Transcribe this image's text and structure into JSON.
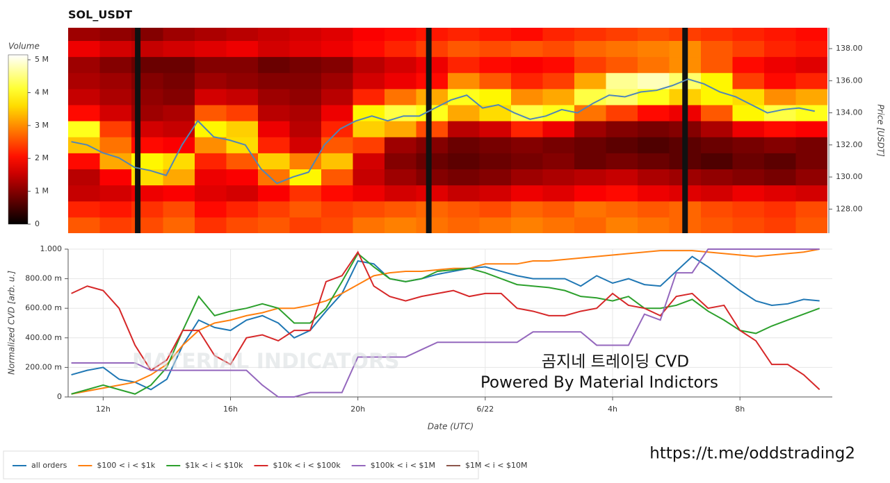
{
  "chart_data": [
    {
      "type": "heatmap",
      "title": "SOL_USDT",
      "colorbar_label": "Volume",
      "clim": [
        0,
        5.15
      ],
      "cticks": [
        0,
        {
          "value": 1,
          "label": "1 M"
        },
        {
          "value": 2,
          "label": "2 M"
        },
        {
          "value": 3,
          "label": "3 M"
        },
        {
          "value": 4,
          "label": "4 M"
        },
        {
          "value": 5,
          "label": "5 M"
        }
      ],
      "xlim": [
        10.9,
        34.9
      ],
      "y2label": "Price [USDT]",
      "y2lim": [
        126.5,
        139.3
      ],
      "y2ticks": [
        {
          "value": 128,
          "label": "128.00"
        },
        {
          "value": 130,
          "label": "130.00"
        },
        {
          "value": 132,
          "label": "132.00"
        },
        {
          "value": 134,
          "label": "134.00"
        },
        {
          "value": 136,
          "label": "136.00"
        },
        {
          "value": 138,
          "label": "138.00"
        }
      ],
      "x_edges": [
        10.9,
        11.9,
        12.9,
        13.9,
        14.9,
        15.9,
        16.9,
        17.9,
        18.9,
        19.9,
        20.9,
        21.9,
        22.9,
        23.9,
        24.9,
        25.9,
        26.9,
        27.9,
        28.9,
        29.9,
        30.9,
        31.9,
        32.9,
        33.9,
        34.9
      ],
      "y_edges": [
        126.5,
        127.5,
        128.5,
        129.5,
        130.5,
        131.5,
        132.5,
        133.5,
        134.5,
        135.5,
        136.5,
        137.5,
        138.5,
        139.5
      ],
      "z": [
        [
          2.6,
          2.4,
          2.5,
          2.7,
          2.3,
          2.5,
          2.6,
          2.4,
          2.5,
          2.8,
          2.9,
          2.8,
          2.7,
          2.8,
          2.9,
          2.8,
          2.7,
          2.9,
          2.8,
          2.7,
          2.6,
          2.5,
          2.4,
          2.6
        ],
        [
          2.2,
          2.1,
          2.3,
          2.5,
          2.0,
          2.2,
          2.4,
          2.6,
          2.4,
          2.5,
          2.6,
          2.7,
          2.6,
          2.5,
          2.7,
          2.6,
          2.8,
          2.7,
          2.6,
          2.7,
          2.5,
          2.4,
          2.3,
          2.5
        ],
        [
          1.5,
          1.6,
          1.8,
          1.9,
          1.7,
          1.6,
          1.9,
          2.3,
          2.0,
          1.8,
          1.6,
          1.7,
          1.5,
          1.6,
          1.8,
          1.7,
          1.9,
          2.0,
          1.8,
          1.7,
          1.6,
          1.8,
          1.7,
          1.6
        ],
        [
          1.4,
          1.9,
          3.6,
          3.2,
          1.8,
          1.9,
          2.8,
          3.8,
          2.6,
          1.5,
          1.2,
          1.0,
          0.9,
          1.0,
          1.2,
          1.3,
          1.4,
          1.5,
          1.3,
          1.2,
          1.1,
          1.0,
          0.9,
          1.1
        ],
        [
          2.0,
          3.2,
          3.8,
          3.6,
          2.2,
          2.6,
          3.5,
          2.9,
          3.4,
          1.6,
          1.0,
          0.8,
          0.7,
          0.8,
          0.9,
          1.0,
          0.8,
          0.9,
          0.8,
          0.7,
          0.6,
          0.8,
          0.7,
          0.9
        ],
        [
          3.4,
          2.8,
          2.0,
          1.9,
          3.0,
          3.6,
          2.2,
          1.6,
          2.6,
          2.4,
          1.2,
          1.0,
          0.8,
          0.9,
          1.0,
          0.9,
          0.8,
          0.7,
          0.6,
          0.7,
          0.8,
          0.9,
          1.0,
          0.9
        ],
        [
          4.0,
          2.4,
          1.6,
          1.5,
          3.8,
          3.5,
          1.8,
          1.4,
          2.2,
          3.5,
          3.2,
          2.5,
          1.4,
          1.6,
          2.2,
          1.8,
          1.2,
          1.0,
          0.9,
          1.0,
          1.3,
          1.8,
          2.0,
          1.9
        ],
        [
          2.0,
          1.6,
          1.2,
          1.3,
          2.6,
          2.4,
          1.4,
          1.3,
          1.8,
          3.8,
          4.2,
          4.0,
          3.2,
          3.6,
          4.2,
          4.0,
          2.8,
          2.4,
          2.0,
          1.8,
          2.6,
          3.8,
          4.2,
          4.0
        ],
        [
          1.5,
          1.3,
          1.1,
          1.0,
          1.6,
          1.5,
          1.2,
          1.1,
          1.4,
          2.2,
          2.8,
          3.2,
          4.0,
          3.8,
          3.0,
          3.2,
          4.2,
          4.4,
          4.0,
          3.5,
          3.8,
          3.6,
          3.0,
          3.2
        ],
        [
          1.3,
          1.2,
          1.0,
          0.9,
          1.2,
          1.1,
          1.0,
          1.0,
          1.2,
          1.6,
          1.8,
          2.0,
          3.0,
          2.6,
          2.2,
          2.4,
          3.2,
          4.6,
          4.8,
          4.4,
          3.8,
          2.4,
          2.0,
          2.2
        ],
        [
          1.2,
          1.0,
          0.8,
          0.8,
          1.0,
          1.0,
          0.8,
          0.9,
          1.0,
          1.4,
          1.6,
          1.8,
          2.2,
          2.0,
          1.9,
          2.0,
          2.4,
          2.6,
          2.8,
          3.0,
          2.6,
          2.0,
          1.8,
          1.7
        ],
        [
          1.8,
          1.6,
          1.5,
          1.6,
          1.7,
          1.8,
          1.6,
          1.7,
          1.8,
          2.0,
          2.2,
          2.4,
          2.6,
          2.5,
          2.6,
          2.5,
          2.7,
          2.8,
          2.9,
          3.0,
          2.6,
          2.4,
          2.2,
          2.1
        ],
        [
          1.2,
          1.1,
          1.0,
          1.2,
          1.3,
          1.4,
          1.5,
          1.6,
          1.7,
          1.9,
          2.0,
          2.1,
          2.2,
          2.1,
          2.0,
          2.2,
          2.3,
          2.4,
          2.5,
          2.4,
          2.3,
          2.2,
          2.1,
          2.0
        ]
      ],
      "gaps": [
        13.1,
        22.3,
        30.4
      ],
      "price": {
        "color": "#4f86b8",
        "x": [
          11,
          11.5,
          12,
          12.5,
          13,
          13.5,
          14,
          14.5,
          15,
          15.5,
          16,
          16.5,
          17,
          17.5,
          18,
          18.5,
          19,
          19.5,
          20,
          20.5,
          21,
          21.5,
          22,
          22.5,
          23,
          23.5,
          24,
          24.5,
          25,
          25.5,
          26,
          26.5,
          27,
          27.5,
          28,
          28.5,
          29,
          29.5,
          30,
          30.5,
          31,
          31.5,
          32,
          32.5,
          33,
          33.5,
          34,
          34.5
        ],
        "values": [
          132.2,
          132.0,
          131.5,
          131.2,
          130.6,
          130.4,
          130.1,
          132.0,
          133.5,
          132.5,
          132.3,
          132.0,
          130.5,
          129.6,
          130.0,
          130.3,
          132.0,
          133.0,
          133.5,
          133.8,
          133.5,
          133.8,
          133.8,
          134.3,
          134.8,
          135.1,
          134.3,
          134.5,
          134.0,
          133.6,
          133.8,
          134.2,
          134.0,
          134.6,
          135.1,
          135.0,
          135.3,
          135.4,
          135.7,
          136.1,
          135.8,
          135.3,
          135.0,
          134.5,
          134.0,
          134.2,
          134.3,
          134.1
        ]
      }
    },
    {
      "type": "line",
      "ylabel": "Normalized CVD [arb. u.]",
      "xlabel": "Date (UTC)",
      "xlim": [
        10.9,
        34.9
      ],
      "ylim": [
        0,
        1
      ],
      "grid": true,
      "legend": "bottom",
      "xticks": [
        {
          "value": 12,
          "label": "12h"
        },
        {
          "value": 16,
          "label": "16h"
        },
        {
          "value": 20,
          "label": "20h"
        },
        {
          "value": 24,
          "label": "6/22"
        },
        {
          "value": 28,
          "label": "4h"
        },
        {
          "value": 32,
          "label": "8h"
        }
      ],
      "yticks": [
        0,
        {
          "value": 0.2,
          "label": "200.00 m"
        },
        {
          "value": 0.4,
          "label": "400.00 m"
        },
        {
          "value": 0.6,
          "label": "600.00 m"
        },
        {
          "value": 0.8,
          "label": "800.00 m"
        },
        {
          "value": 1,
          "label": "1.000"
        }
      ],
      "x": [
        11,
        11.5,
        12,
        12.5,
        13,
        13.5,
        14,
        14.5,
        15,
        15.5,
        16,
        16.5,
        17,
        17.5,
        18,
        18.5,
        19,
        19.5,
        20,
        20.5,
        21,
        21.5,
        22,
        22.5,
        23,
        23.5,
        24,
        24.5,
        25,
        25.5,
        26,
        26.5,
        27,
        27.5,
        28,
        28.5,
        29,
        29.5,
        30,
        30.5,
        31,
        31.5,
        32,
        32.5,
        33,
        33.5,
        34,
        34.5
      ],
      "series": [
        {
          "name": "all orders",
          "color": "#1f77b4",
          "values": [
            0.15,
            0.18,
            0.2,
            0.12,
            0.1,
            0.05,
            0.12,
            0.35,
            0.52,
            0.47,
            0.45,
            0.52,
            0.55,
            0.5,
            0.4,
            0.45,
            0.58,
            0.7,
            0.92,
            0.9,
            0.8,
            0.78,
            0.8,
            0.83,
            0.85,
            0.87,
            0.88,
            0.85,
            0.82,
            0.8,
            0.8,
            0.8,
            0.75,
            0.82,
            0.77,
            0.8,
            0.76,
            0.75,
            0.85,
            0.95,
            0.88,
            0.8,
            0.72,
            0.65,
            0.62,
            0.63,
            0.66,
            0.65
          ]
        },
        {
          "name": "$100 < i < $1k",
          "color": "#ff7f0e",
          "values": [
            0.02,
            0.04,
            0.06,
            0.08,
            0.1,
            0.15,
            0.22,
            0.35,
            0.45,
            0.5,
            0.52,
            0.55,
            0.57,
            0.6,
            0.6,
            0.62,
            0.65,
            0.7,
            0.76,
            0.82,
            0.84,
            0.85,
            0.85,
            0.86,
            0.87,
            0.87,
            0.9,
            0.9,
            0.9,
            0.92,
            0.92,
            0.93,
            0.94,
            0.95,
            0.96,
            0.97,
            0.98,
            0.99,
            0.99,
            0.99,
            0.98,
            0.97,
            0.96,
            0.95,
            0.96,
            0.97,
            0.98,
            1.0
          ]
        },
        {
          "name": "$1k < i < $10k",
          "color": "#2ca02c",
          "values": [
            0.02,
            0.05,
            0.08,
            0.05,
            0.02,
            0.08,
            0.2,
            0.45,
            0.68,
            0.55,
            0.58,
            0.6,
            0.63,
            0.6,
            0.5,
            0.5,
            0.6,
            0.78,
            0.97,
            0.88,
            0.8,
            0.78,
            0.8,
            0.85,
            0.86,
            0.87,
            0.84,
            0.8,
            0.76,
            0.75,
            0.74,
            0.72,
            0.68,
            0.67,
            0.65,
            0.68,
            0.6,
            0.6,
            0.62,
            0.66,
            0.58,
            0.52,
            0.45,
            0.43,
            0.48,
            0.52,
            0.56,
            0.6
          ]
        },
        {
          "name": "$10k < i < $100k",
          "color": "#d62728",
          "values": [
            0.7,
            0.75,
            0.72,
            0.6,
            0.35,
            0.18,
            0.25,
            0.45,
            0.45,
            0.28,
            0.22,
            0.4,
            0.42,
            0.38,
            0.45,
            0.45,
            0.78,
            0.82,
            0.98,
            0.75,
            0.68,
            0.65,
            0.68,
            0.7,
            0.72,
            0.68,
            0.7,
            0.7,
            0.6,
            0.58,
            0.55,
            0.55,
            0.58,
            0.6,
            0.7,
            0.62,
            0.6,
            0.55,
            0.68,
            0.7,
            0.6,
            0.62,
            0.45,
            0.38,
            0.22,
            0.22,
            0.15,
            0.05
          ]
        },
        {
          "name": "$100k < i < $1M",
          "color": "#9467bd",
          "values": [
            0.23,
            0.23,
            0.23,
            0.23,
            0.23,
            0.18,
            0.18,
            0.18,
            0.18,
            0.18,
            0.18,
            0.18,
            0.08,
            0,
            0,
            0.03,
            0.03,
            0.03,
            0.27,
            0.27,
            0.27,
            0.27,
            0.32,
            0.37,
            0.37,
            0.37,
            0.37,
            0.37,
            0.37,
            0.44,
            0.44,
            0.44,
            0.44,
            0.35,
            0.35,
            0.35,
            0.56,
            0.52,
            0.84,
            0.84,
            1,
            1,
            1,
            1,
            1,
            1,
            1,
            1
          ]
        },
        {
          "name": "$1M < i < $10M",
          "color": "#8c564b",
          "values": [
            null,
            null,
            null,
            null,
            null,
            null,
            null,
            null,
            null,
            null,
            null,
            null,
            null,
            null,
            null,
            null,
            null,
            null,
            null,
            null,
            null,
            null,
            null,
            null,
            null,
            null,
            null,
            null,
            null,
            null,
            null,
            null,
            null,
            null,
            null,
            null,
            null,
            null,
            null,
            null,
            null,
            null,
            null,
            null,
            null,
            null,
            null,
            null
          ]
        }
      ],
      "watermark": "MATERIAL INDICATORS",
      "annotations": [
        "곰지네 트레이딩 CVD",
        "Powered By Material Indictors"
      ],
      "url": "https://t.me/oddstrading2"
    }
  ]
}
